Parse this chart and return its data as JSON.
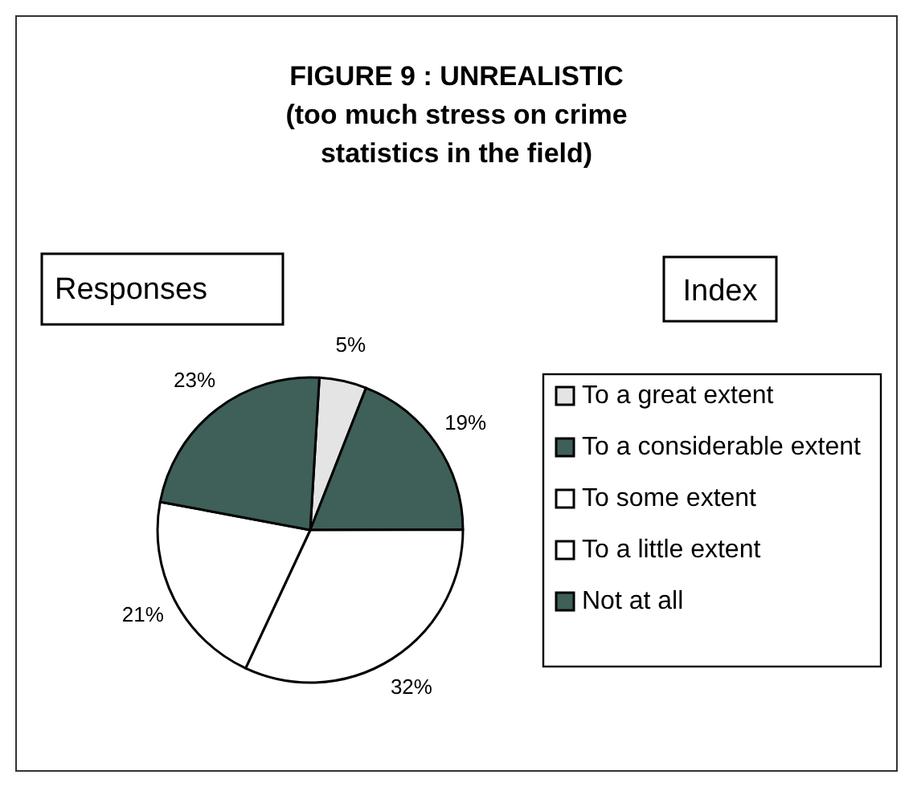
{
  "chart_data": {
    "type": "pie",
    "title": "FIGURE 9 : UNREALISTIC\n(too much stress on crime\nstatistics in the field)",
    "categories": [
      "To a great extent",
      "To a considerable extent",
      "To some extent",
      "To a little extent",
      "Not at all"
    ],
    "values": [
      5,
      19,
      32,
      21,
      23
    ],
    "colors": [
      "#e4e4e4",
      "#3f5f59",
      "#ffffff",
      "#ffffff",
      "#3f5f59"
    ],
    "legend": "right",
    "legend_title": "Index",
    "value_labels": [
      "5%",
      "19%",
      "32%",
      "21%",
      "23%"
    ],
    "annotations": [
      "Responses"
    ]
  }
}
